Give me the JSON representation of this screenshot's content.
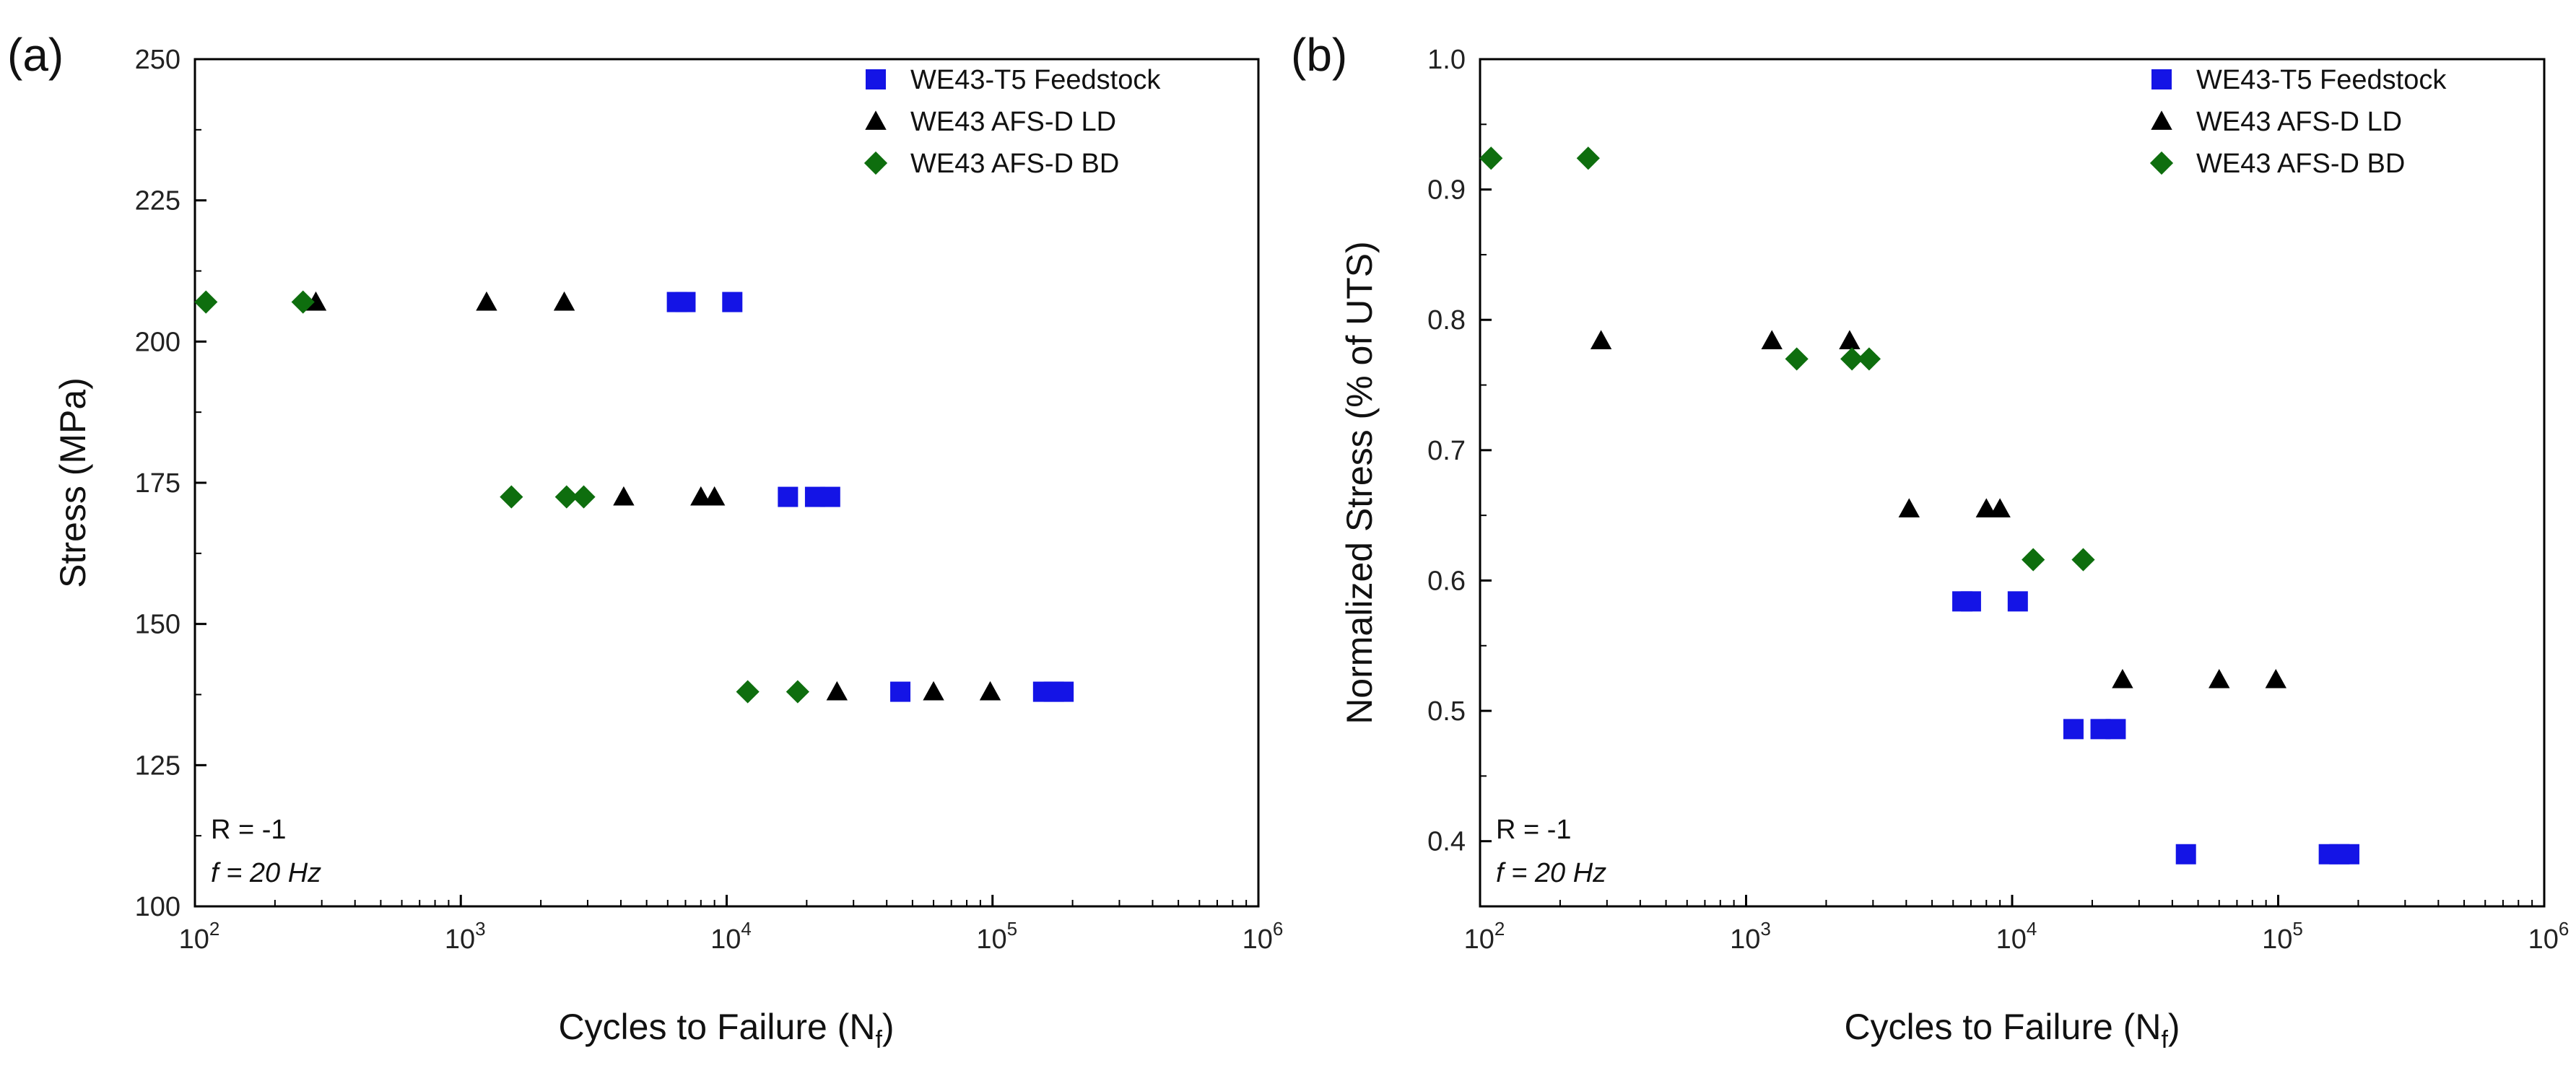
{
  "chart_data": [
    {
      "type": "scatter",
      "panel_label": "(a)",
      "title": "",
      "xlabel": "Cycles to Failure (N",
      "xlabel_sub": "f",
      "xlabel_close": ")",
      "ylabel": "Stress (MPa)",
      "xscale": "log",
      "xlim": [
        100,
        1000000
      ],
      "ylim": [
        100,
        250
      ],
      "x_ticks": [
        {
          "base": "10",
          "exp": "2",
          "value": 100
        },
        {
          "base": "10",
          "exp": "3",
          "value": 1000
        },
        {
          "base": "10",
          "exp": "4",
          "value": 10000
        },
        {
          "base": "10",
          "exp": "5",
          "value": 100000
        },
        {
          "base": "10",
          "exp": "6",
          "value": 1000000
        }
      ],
      "y_ticks": [
        "100",
        "125",
        "150",
        "175",
        "200",
        "225",
        "250"
      ],
      "y_minor_step": 12.5,
      "legend_position": "top-right",
      "annotations": {
        "r_text": "R = -1",
        "f_text": "f = 20 Hz"
      },
      "series": [
        {
          "name": "WE43-T5 Feedstock",
          "marker": "square",
          "color": "#1414e6",
          "points": [
            [
              6500,
              207
            ],
            [
              7000,
              207
            ],
            [
              10500,
              207
            ],
            [
              17000,
              172.5
            ],
            [
              21500,
              172.5
            ],
            [
              24500,
              172.5
            ],
            [
              45000,
              138
            ],
            [
              155000,
              138
            ],
            [
              170000,
              138
            ],
            [
              185000,
              138
            ]
          ]
        },
        {
          "name": "WE43 AFS-D LD",
          "marker": "triangle",
          "color": "#000000",
          "points": [
            [
              285,
              207
            ],
            [
              1250,
              207
            ],
            [
              2450,
              207
            ],
            [
              4100,
              172.5
            ],
            [
              8000,
              172.5
            ],
            [
              9000,
              172.5
            ],
            [
              26000,
              138
            ],
            [
              60000,
              138
            ],
            [
              98000,
              138
            ]
          ]
        },
        {
          "name": "WE43 AFS-D BD",
          "marker": "diamond",
          "color": "#0e6e0e",
          "points": [
            [
              110,
              207
            ],
            [
              255,
              207
            ],
            [
              1550,
              172.5
            ],
            [
              2500,
              172.5
            ],
            [
              2900,
              172.5
            ],
            [
              12000,
              138
            ],
            [
              18500,
              138
            ]
          ]
        }
      ]
    },
    {
      "type": "scatter",
      "panel_label": "(b)",
      "title": "",
      "xlabel": "Cycles to Failure (N",
      "xlabel_sub": "f",
      "xlabel_close": ")",
      "ylabel": "Normalized Stress (% of UTS)",
      "xscale": "log",
      "xlim": [
        100,
        1000000
      ],
      "ylim": [
        0.35,
        1.0
      ],
      "x_ticks": [
        {
          "base": "10",
          "exp": "2",
          "value": 100
        },
        {
          "base": "10",
          "exp": "3",
          "value": 1000
        },
        {
          "base": "10",
          "exp": "4",
          "value": 10000
        },
        {
          "base": "10",
          "exp": "5",
          "value": 100000
        },
        {
          "base": "10",
          "exp": "6",
          "value": 1000000
        }
      ],
      "y_ticks": [
        "0.4",
        "0.5",
        "0.6",
        "0.7",
        "0.8",
        "0.9",
        "1.0"
      ],
      "y_minor_step": 0.05,
      "legend_position": "top-right",
      "annotations": {
        "r_text": "R = -1",
        "f_text": "f = 20 Hz"
      },
      "series": [
        {
          "name": "WE43-T5 Feedstock",
          "marker": "square",
          "color": "#1414e6",
          "points": [
            [
              6500,
              0.584
            ],
            [
              7000,
              0.584
            ],
            [
              10500,
              0.584
            ],
            [
              17000,
              0.486
            ],
            [
              21500,
              0.486
            ],
            [
              24500,
              0.486
            ],
            [
              45000,
              0.39
            ],
            [
              155000,
              0.39
            ],
            [
              170000,
              0.39
            ],
            [
              185000,
              0.39
            ]
          ]
        },
        {
          "name": "WE43 AFS-D LD",
          "marker": "triangle",
          "color": "#000000",
          "points": [
            [
              285,
              0.784
            ],
            [
              1250,
              0.784
            ],
            [
              2450,
              0.784
            ],
            [
              4100,
              0.655
            ],
            [
              8000,
              0.655
            ],
            [
              9000,
              0.655
            ],
            [
              26000,
              0.524
            ],
            [
              60000,
              0.524
            ],
            [
              98000,
              0.524
            ]
          ]
        },
        {
          "name": "WE43 AFS-D BD",
          "marker": "diamond",
          "color": "#0e6e0e",
          "points": [
            [
              110,
              0.924
            ],
            [
              255,
              0.924
            ],
            [
              1550,
              0.77
            ],
            [
              2500,
              0.77
            ],
            [
              2900,
              0.77
            ],
            [
              12000,
              0.616
            ],
            [
              18500,
              0.616
            ]
          ]
        }
      ]
    }
  ]
}
